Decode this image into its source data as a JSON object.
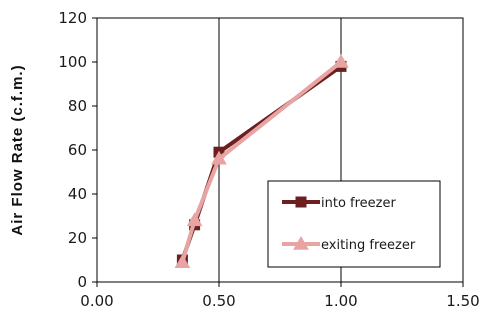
{
  "chart_data": {
    "type": "line",
    "title": "",
    "xlabel": "",
    "ylabel": "Air Flow Rate (c.f.m.)",
    "xlim": [
      0,
      1.5
    ],
    "ylim": [
      0,
      120
    ],
    "x_ticks": [
      "0.00",
      "0.50",
      "1.00",
      "1.50"
    ],
    "y_ticks": [
      "0",
      "20",
      "40",
      "60",
      "80",
      "100",
      "120"
    ],
    "grid": "vertical",
    "legend_position": "bottom-right",
    "series": [
      {
        "name": "into freezer",
        "color": "#6b1f1f",
        "marker": "square",
        "points": [
          {
            "x": 0.35,
            "y": 10
          },
          {
            "x": 0.4,
            "y": 26
          },
          {
            "x": 0.5,
            "y": 59
          },
          {
            "x": 1.0,
            "y": 98
          }
        ]
      },
      {
        "name": "exiting freezer",
        "color": "#e8a3a3",
        "marker": "triangle",
        "points": [
          {
            "x": 0.35,
            "y": 9
          },
          {
            "x": 0.4,
            "y": 28
          },
          {
            "x": 0.5,
            "y": 56
          },
          {
            "x": 1.0,
            "y": 100
          }
        ]
      }
    ]
  }
}
